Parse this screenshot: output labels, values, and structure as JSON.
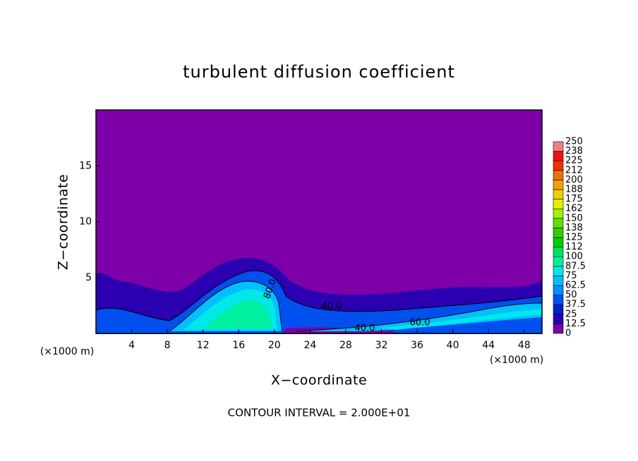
{
  "chart_data": {
    "type": "contour",
    "title": "turbulent diffusion coefficient",
    "x_label": "X−coordinate",
    "y_label": "Z−coordinate",
    "x_unit": "(×1000 m)",
    "y_unit": "(×1000 m)",
    "footnote": "CONTOUR INTERVAL = 2.000E+01",
    "xlim": [
      0,
      50
    ],
    "xticks": [
      4,
      8,
      12,
      16,
      20,
      24,
      28,
      32,
      36,
      40,
      44,
      48
    ],
    "ylim": [
      0,
      20
    ],
    "yticks": [
      5,
      10,
      15
    ],
    "levels": [
      0,
      12.5,
      25,
      37.5,
      50,
      62.5,
      75,
      87.5,
      100,
      112,
      125,
      138,
      150,
      162,
      175,
      188,
      200,
      212,
      225,
      238,
      250
    ],
    "colors": [
      "#7d00a8",
      "#2a00b0",
      "#0020d0",
      "#0050f0",
      "#0090ff",
      "#00c0ff",
      "#00e8e8",
      "#00f0a0",
      "#00e060",
      "#00d000",
      "#30d000",
      "#60e000",
      "#a0f000",
      "#e0f000",
      "#f0d000",
      "#f0a000",
      "#f07000",
      "#f03000",
      "#f01010",
      "#f08080"
    ],
    "contour_labels": [
      "40.0",
      "60.0",
      "40.0",
      "80.0"
    ]
  }
}
